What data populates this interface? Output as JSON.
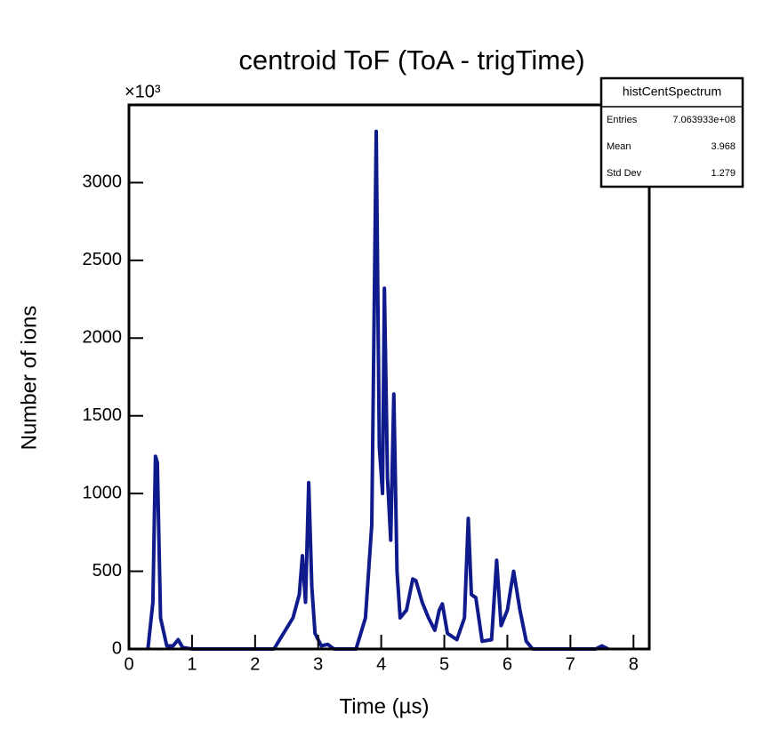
{
  "chart_data": {
    "type": "line",
    "title": "centroid ToF (ToA - trigTime)",
    "x_label": "Time (µs)",
    "y_label": "Number of ions",
    "y_multiplier": "×10³",
    "color": "#0f1a8c",
    "xlim": [
      0,
      8.25
    ],
    "ylim": [
      0,
      3500
    ],
    "xticks": [
      0,
      1,
      2,
      3,
      4,
      5,
      6,
      7,
      8
    ],
    "yticks": [
      0,
      500,
      1000,
      1500,
      2000,
      2500,
      3000
    ],
    "x": [
      0.3,
      0.38,
      0.42,
      0.45,
      0.5,
      0.6,
      0.7,
      0.78,
      0.85,
      1.0,
      2.3,
      2.45,
      2.6,
      2.7,
      2.75,
      2.8,
      2.85,
      2.9,
      2.95,
      3.05,
      3.15,
      3.25,
      3.6,
      3.75,
      3.85,
      3.92,
      3.97,
      4.02,
      4.05,
      4.1,
      4.15,
      4.2,
      4.25,
      4.3,
      4.4,
      4.5,
      4.55,
      4.65,
      4.75,
      4.85,
      4.92,
      4.97,
      5.05,
      5.2,
      5.32,
      5.38,
      5.43,
      5.5,
      5.6,
      5.75,
      5.83,
      5.9,
      6.0,
      6.05,
      6.1,
      6.2,
      6.3,
      6.4,
      7.4,
      7.5,
      7.6
    ],
    "values": [
      0,
      300,
      1240,
      1200,
      200,
      20,
      20,
      60,
      10,
      0,
      0,
      100,
      200,
      350,
      600,
      300,
      1070,
      400,
      100,
      20,
      30,
      0,
      0,
      200,
      800,
      3330,
      1300,
      1000,
      2320,
      1100,
      700,
      1640,
      500,
      200,
      250,
      450,
      440,
      300,
      200,
      120,
      250,
      290,
      100,
      60,
      200,
      840,
      350,
      330,
      50,
      60,
      570,
      150,
      250,
      380,
      500,
      250,
      50,
      0,
      0,
      20,
      0
    ],
    "stats_box": {
      "title": "histCentSpectrum",
      "rows": [
        {
          "label": "Entries",
          "value": "7.063933e+08"
        },
        {
          "label": "Mean",
          "value": "3.968"
        },
        {
          "label": "Std Dev",
          "value": "1.279"
        }
      ]
    }
  }
}
